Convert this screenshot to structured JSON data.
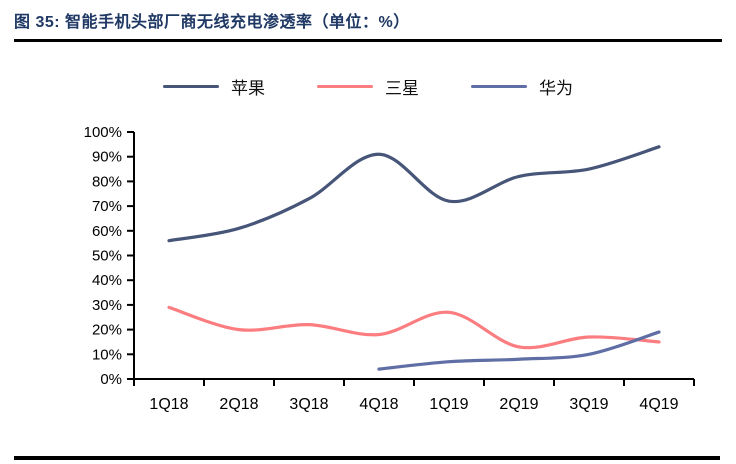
{
  "header": {
    "title": "图 35:  智能手机头部厂商无线充电渗透率（单位：%）"
  },
  "colors": {
    "title": "#1F3864",
    "axis": "#000000",
    "rule": "#000000",
    "apple_line": "#465578",
    "samsung_line": "#FB7D80",
    "huawei_line": "#5F6EA5"
  },
  "chart_data": {
    "type": "line",
    "title": "智能手机头部厂商无线充电渗透率",
    "unit": "%",
    "smooth": true,
    "grid": false,
    "legend_position": "top",
    "categories": [
      "1Q18",
      "2Q18",
      "3Q18",
      "4Q18",
      "1Q19",
      "2Q19",
      "3Q19",
      "4Q19"
    ],
    "series": [
      {
        "name": "苹果",
        "color": "#465578",
        "values": [
          56,
          61,
          73,
          91,
          72,
          82,
          85,
          94
        ]
      },
      {
        "name": "三星",
        "color": "#FB7D80",
        "values": [
          29,
          20,
          22,
          18,
          27,
          13,
          17,
          15
        ]
      },
      {
        "name": "华为",
        "color": "#5F6EA5",
        "values": [
          null,
          null,
          null,
          4,
          7,
          8,
          10,
          19
        ]
      }
    ],
    "ylim": [
      0,
      100
    ],
    "ytick_step": 10,
    "yticks": [
      "0%",
      "10%",
      "20%",
      "30%",
      "40%",
      "50%",
      "60%",
      "70%",
      "80%",
      "90%",
      "100%"
    ],
    "xlabel": "",
    "ylabel": ""
  }
}
